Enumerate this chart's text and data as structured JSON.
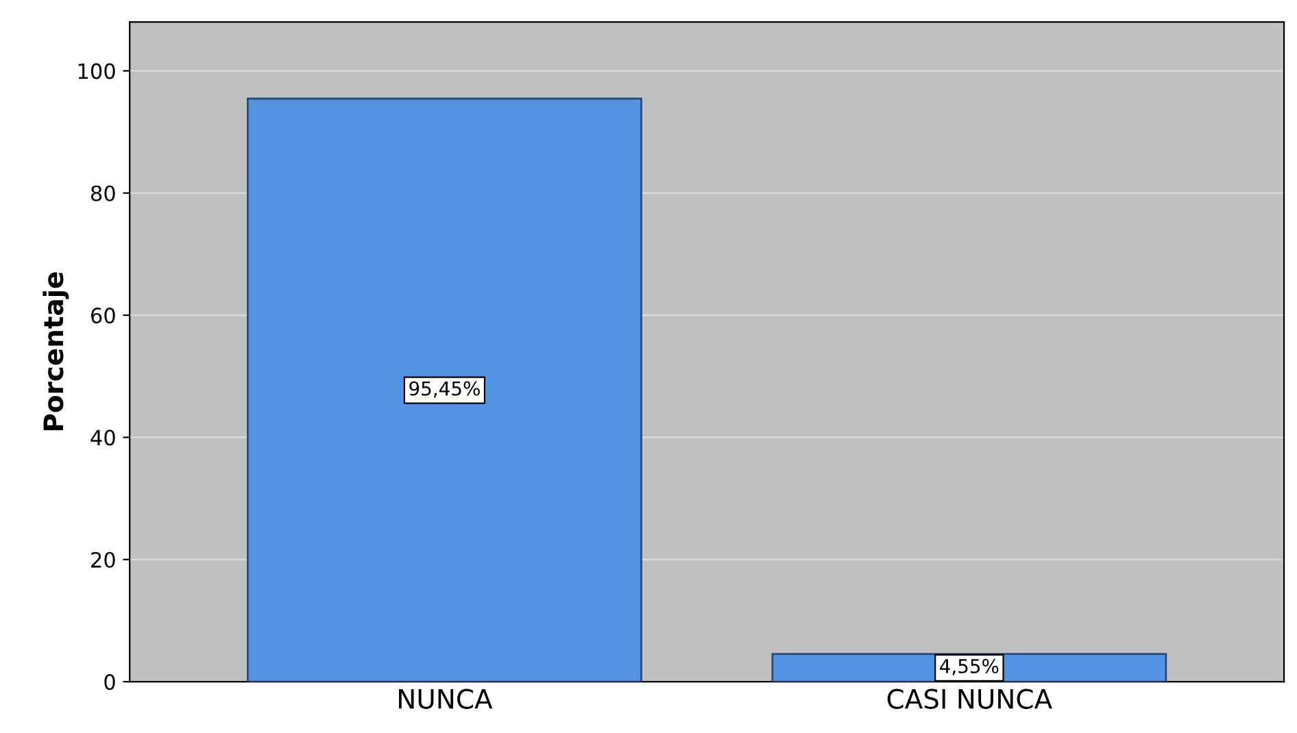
{
  "chart_data": {
    "type": "bar",
    "ylabel": "Porcentaje",
    "categories": [
      "NUNCA",
      "CASI NUNCA"
    ],
    "values": [
      95.45,
      4.55
    ],
    "value_labels": [
      "95,45%",
      "4,55%"
    ],
    "color": "#5294e2",
    "ylim": [
      0,
      108
    ],
    "yticks": [
      0,
      20,
      40,
      60,
      80,
      100
    ],
    "grid": "y"
  }
}
